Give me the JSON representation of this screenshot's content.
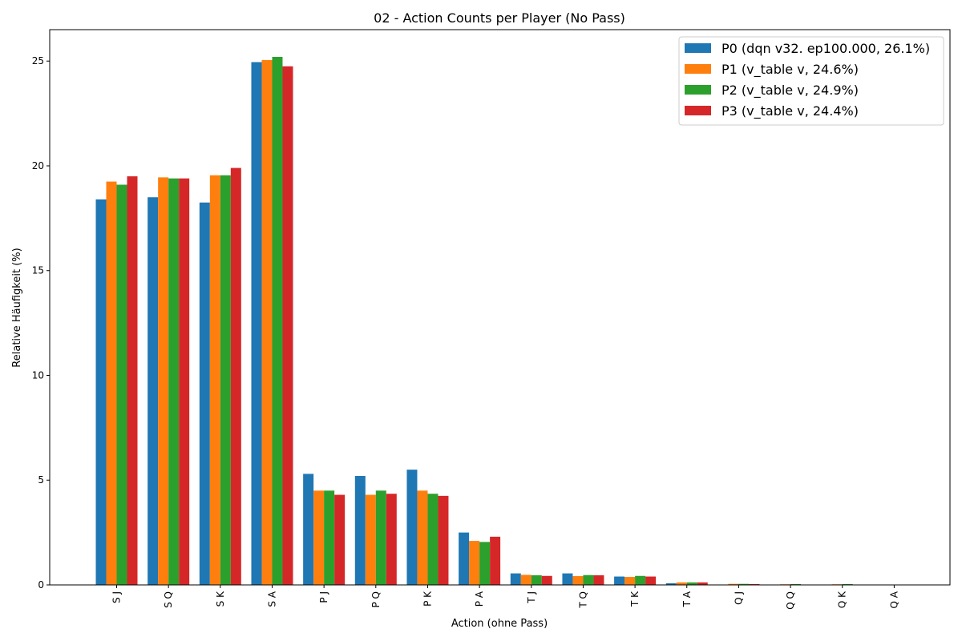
{
  "chart_data": {
    "type": "bar",
    "title": "02 - Action Counts per Player (No Pass)",
    "xlabel": "Action (ohne Pass)",
    "ylabel": "Relative Häufigkeit (%)",
    "ylim": [
      0,
      26.5
    ],
    "yticks": [
      0,
      5,
      10,
      15,
      20,
      25
    ],
    "ytick_labels": [
      "0",
      "5",
      "10",
      "15",
      "20",
      "25"
    ],
    "grid": false,
    "legend_position": "top-right",
    "categories": [
      "S J",
      "S Q",
      "S K",
      "S A",
      "P J",
      "P Q",
      "P K",
      "P A",
      "T J",
      "T Q",
      "T K",
      "T A",
      "Q J",
      "Q Q",
      "Q K",
      "Q A"
    ],
    "series": [
      {
        "name": "P0 (dqn v32. ep100.000, 26.1%)",
        "color": "#1f77b4",
        "values": [
          18.4,
          18.5,
          18.25,
          24.95,
          5.3,
          5.2,
          5.5,
          2.5,
          0.55,
          0.55,
          0.4,
          0.08,
          0.01,
          0.0,
          0.0,
          0.0
        ]
      },
      {
        "name": "P1 (v_table v, 24.6%)",
        "color": "#ff7f0e",
        "values": [
          19.25,
          19.45,
          19.55,
          25.05,
          4.5,
          4.3,
          4.5,
          2.1,
          0.48,
          0.42,
          0.38,
          0.12,
          0.05,
          0.03,
          0.03,
          0.0
        ]
      },
      {
        "name": "P2 (v_table v, 24.9%)",
        "color": "#2ca02c",
        "values": [
          19.1,
          19.4,
          19.55,
          25.2,
          4.5,
          4.5,
          4.35,
          2.05,
          0.46,
          0.47,
          0.43,
          0.12,
          0.05,
          0.04,
          0.04,
          0.0
        ]
      },
      {
        "name": "P3 (v_table v, 24.4%)",
        "color": "#d62728",
        "values": [
          19.5,
          19.4,
          19.9,
          24.75,
          4.3,
          4.35,
          4.25,
          2.3,
          0.43,
          0.46,
          0.4,
          0.12,
          0.04,
          0.0,
          0.0,
          0.0
        ]
      }
    ]
  }
}
